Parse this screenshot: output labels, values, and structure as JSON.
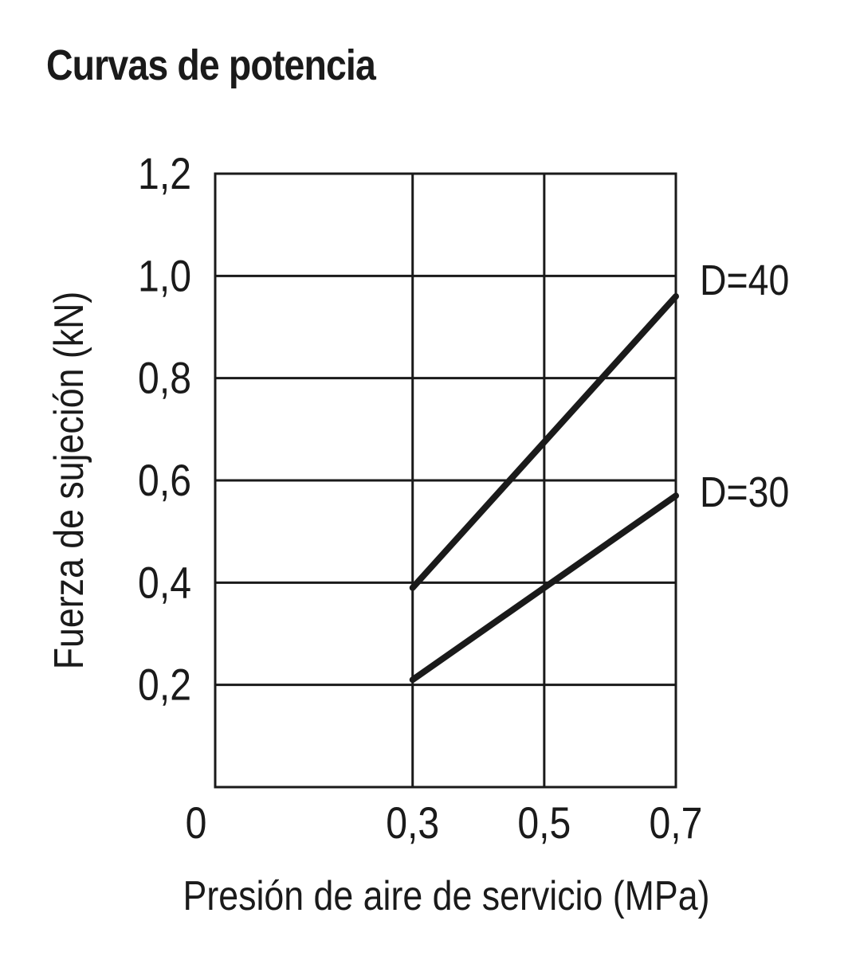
{
  "title": "Curvas de potencia",
  "chart_data": {
    "type": "line",
    "title": "Curvas de potencia",
    "xlabel": "Presión de aire de servicio (MPa)",
    "ylabel": "Fuerza de sujeción (kN)",
    "xlim": [
      0,
      0.7
    ],
    "ylim": [
      0,
      1.2
    ],
    "x_ticks": [
      {
        "value": 0,
        "label": "0"
      },
      {
        "value": 0.3,
        "label": "0,3"
      },
      {
        "value": 0.5,
        "label": "0,5"
      },
      {
        "value": 0.7,
        "label": "0,7"
      }
    ],
    "y_ticks": [
      {
        "value": 0.2,
        "label": "0,2"
      },
      {
        "value": 0.4,
        "label": "0,4"
      },
      {
        "value": 0.6,
        "label": "0,6"
      },
      {
        "value": 0.8,
        "label": "0,8"
      },
      {
        "value": 1.0,
        "label": "1,0"
      },
      {
        "value": 1.2,
        "label": "1,2"
      }
    ],
    "grid": true,
    "series": [
      {
        "name": "D=40",
        "x": [
          0.3,
          0.7
        ],
        "y": [
          0.39,
          0.96
        ]
      },
      {
        "name": "D=30",
        "x": [
          0.3,
          0.7
        ],
        "y": [
          0.21,
          0.57
        ]
      }
    ],
    "colors": {
      "line": "#1a1a1a",
      "grid": "#1a1a1a"
    }
  }
}
